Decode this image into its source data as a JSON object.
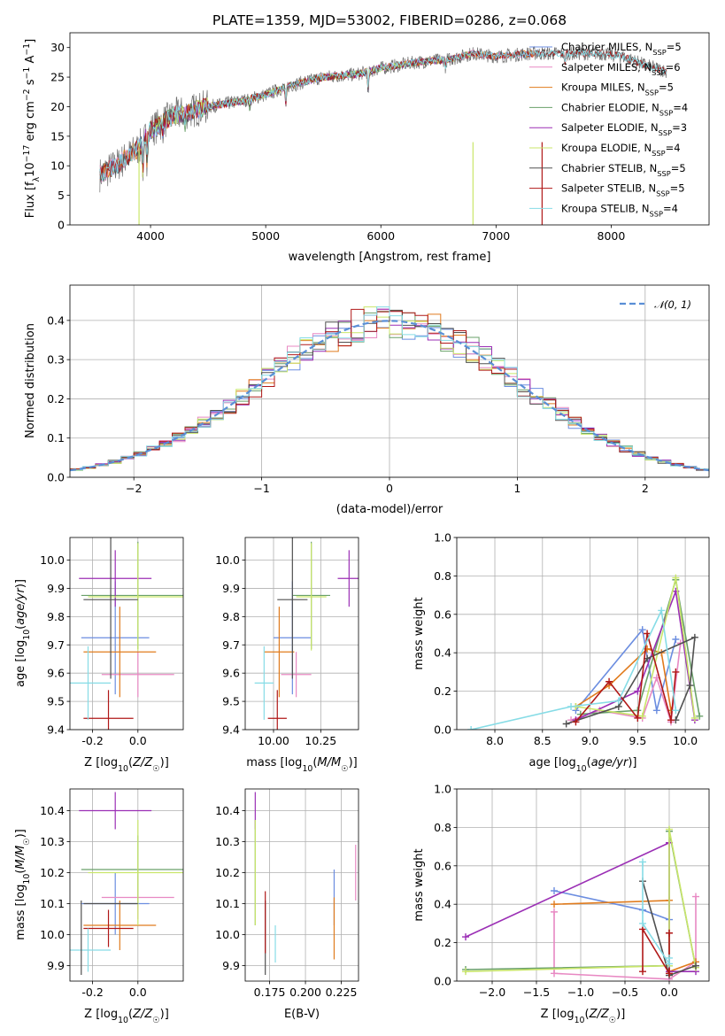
{
  "figure_title": "PLATE=1359, MJD=53002, FIBERID=0286, z=0.068",
  "colors": {
    "chabrier_miles": "#6b8de0",
    "salpeter_miles": "#e889c3",
    "kroupa_miles": "#e07b1d",
    "chabrier_elodie": "#6aa06a",
    "salpeter_elodie": "#9b2fb5",
    "kroupa_elodie": "#c9e66a",
    "chabrier_stelib": "#505050",
    "salpeter_stelib": "#b01818",
    "kroupa_stelib": "#86dce6",
    "spectrum_data": "#707070",
    "gaussian": "#5a8fd6"
  },
  "chart_data": [
    {
      "id": "spectrum",
      "type": "line",
      "xlabel": "wavelength [Angstrom, rest frame]",
      "ylabel": "Flux [f_λ 10^-17 erg cm^-2 s^-1 A^-1]",
      "xlim": [
        3300,
        8850
      ],
      "ylim": [
        0,
        32.5
      ],
      "xticks": [
        4000,
        5000,
        6000,
        7000,
        8000
      ],
      "yticks": [
        0,
        5,
        10,
        15,
        20,
        25,
        30
      ],
      "grid": false,
      "legend_position": "right",
      "legend": [
        {
          "name": "Chabrier MILES",
          "nssp": "5",
          "color_key": "chabrier_miles"
        },
        {
          "name": "Salpeter MILES",
          "nssp": "6",
          "color_key": "salpeter_miles"
        },
        {
          "name": "Kroupa MILES",
          "nssp": "5",
          "color_key": "kroupa_miles"
        },
        {
          "name": "Chabrier ELODIE",
          "nssp": "4",
          "color_key": "chabrier_elodie"
        },
        {
          "name": "Salpeter ELODIE",
          "nssp": "3",
          "color_key": "salpeter_elodie"
        },
        {
          "name": "Kroupa ELODIE",
          "nssp": "4",
          "color_key": "kroupa_elodie"
        },
        {
          "name": "Chabrier STELIB",
          "nssp": "5",
          "color_key": "chabrier_stelib"
        },
        {
          "name": "Salpeter STELIB",
          "nssp": "5",
          "color_key": "salpeter_stelib"
        },
        {
          "name": "Kroupa STELIB",
          "nssp": "4",
          "color_key": "kroupa_stelib"
        }
      ],
      "data_range": [
        3560,
        8480
      ],
      "continuum": [
        [
          3560,
          8.5
        ],
        [
          3700,
          10
        ],
        [
          3900,
          13
        ],
        [
          4000,
          16
        ],
        [
          4200,
          18.5
        ],
        [
          4500,
          20
        ],
        [
          4800,
          21
        ],
        [
          5000,
          22
        ],
        [
          5200,
          23.5
        ],
        [
          5500,
          25
        ],
        [
          5800,
          25.5
        ],
        [
          6000,
          26.5
        ],
        [
          6300,
          27.5
        ],
        [
          6600,
          28
        ],
        [
          6800,
          29
        ],
        [
          7000,
          28.5
        ],
        [
          7300,
          29
        ],
        [
          7600,
          29
        ],
        [
          7900,
          29
        ],
        [
          8100,
          28.5
        ],
        [
          8300,
          27
        ],
        [
          8480,
          26
        ]
      ],
      "model_ranges": {
        "MILES": [
          3560,
          7400
        ],
        "ELODIE": [
          3900,
          6800
        ],
        "STELIB": [
          3560,
          8480
        ]
      }
    },
    {
      "id": "residual-histogram",
      "type": "line",
      "xlabel": "(data-model)/error",
      "ylabel": "Normed distribution",
      "xlim": [
        -2.5,
        2.5
      ],
      "ylim": [
        0,
        0.49
      ],
      "xticks": [
        -2,
        -1,
        0,
        1,
        2
      ],
      "yticks": [
        0,
        0.1,
        0.2,
        0.3,
        0.4
      ],
      "grid": true,
      "legend_position": "top-right",
      "series": [
        {
          "name": "N(0,1)",
          "label": "𝒩(0, 1)",
          "style": "dashed",
          "color_key": "gaussian",
          "mu": 0,
          "sigma": 1
        }
      ],
      "histogram": {
        "bins": 50,
        "xmin": -2.5,
        "xmax": 2.5,
        "models": 9
      }
    },
    {
      "id": "age-vs-Z",
      "type": "scatter",
      "xlabel": "Z [log10(Z/Z☉)]",
      "ylabel": "age [log10(age/yr)]",
      "xlim": [
        -0.3,
        0.2
      ],
      "ylim": [
        9.4,
        10.08
      ],
      "xticks": [
        -0.2,
        0.0
      ],
      "yticks": [
        9.4,
        9.5,
        9.6,
        9.7,
        9.8,
        9.9,
        10.0
      ],
      "grid": true,
      "points": [
        {
          "c": "chabrier_miles",
          "x": -0.1,
          "xerr": 0.15,
          "y": 9.725,
          "yerr": 0.2
        },
        {
          "c": "salpeter_miles",
          "x": 0.0,
          "xerr": 0.16,
          "y": 9.595,
          "yerr": 0.08
        },
        {
          "c": "kroupa_miles",
          "x": -0.08,
          "xerr": 0.16,
          "y": 9.675,
          "yerr": 0.16
        },
        {
          "c": "chabrier_elodie",
          "x": 0.0,
          "xerr": 0.25,
          "y": 9.875,
          "yerr": 0.19
        },
        {
          "c": "salpeter_elodie",
          "x": -0.1,
          "xerr": 0.16,
          "y": 9.935,
          "yerr": 0.1
        },
        {
          "c": "kroupa_elodie",
          "x": 0.0,
          "xerr": 0.22,
          "y": 9.87,
          "yerr": 0.19
        },
        {
          "c": "chabrier_stelib",
          "x": -0.12,
          "xerr": 0.12,
          "y": 9.86,
          "yerr": 0.28
        },
        {
          "c": "salpeter_stelib",
          "x": -0.13,
          "xerr": 0.11,
          "y": 9.44,
          "yerr": 0.1
        },
        {
          "c": "kroupa_stelib",
          "x": -0.22,
          "xerr": 0.1,
          "y": 9.565,
          "yerr": 0.13
        }
      ]
    },
    {
      "id": "age-vs-mass",
      "type": "scatter",
      "xlabel": "mass [log10(M/M☉)]",
      "ylabel": "",
      "xlim": [
        9.85,
        10.45
      ],
      "ylim": [
        9.4,
        10.08
      ],
      "xticks": [
        10.0,
        10.25
      ],
      "yticks": [
        9.4,
        9.5,
        9.6,
        9.7,
        9.8,
        9.9,
        10.0
      ],
      "grid": true,
      "points": [
        {
          "c": "chabrier_miles",
          "x": 10.1,
          "xerr": 0.1,
          "y": 9.725,
          "yerr": 0.2
        },
        {
          "c": "salpeter_miles",
          "x": 10.12,
          "xerr": 0.08,
          "y": 9.595,
          "yerr": 0.08
        },
        {
          "c": "kroupa_miles",
          "x": 10.03,
          "xerr": 0.08,
          "y": 9.675,
          "yerr": 0.16
        },
        {
          "c": "chabrier_elodie",
          "x": 10.2,
          "xerr": 0.1,
          "y": 9.875,
          "yerr": 0.19
        },
        {
          "c": "salpeter_elodie",
          "x": 10.4,
          "xerr": 0.06,
          "y": 9.935,
          "yerr": 0.1
        },
        {
          "c": "kroupa_elodie",
          "x": 10.2,
          "xerr": 0.08,
          "y": 9.87,
          "yerr": 0.19
        },
        {
          "c": "chabrier_stelib",
          "x": 10.1,
          "xerr": 0.08,
          "y": 9.86,
          "yerr": 0.28
        },
        {
          "c": "salpeter_stelib",
          "x": 10.02,
          "xerr": 0.05,
          "y": 9.44,
          "yerr": 0.1
        },
        {
          "c": "kroupa_stelib",
          "x": 9.95,
          "xerr": 0.05,
          "y": 9.565,
          "yerr": 0.13
        }
      ]
    },
    {
      "id": "weight-vs-age",
      "type": "line",
      "xlabel": "age [log10(age/yr)]",
      "ylabel": "mass weight",
      "xlim": [
        7.6,
        10.25
      ],
      "ylim": [
        0,
        1.0
      ],
      "xticks": [
        8.0,
        8.5,
        9.0,
        9.5,
        10.0
      ],
      "yticks": [
        0.0,
        0.2,
        0.4,
        0.6,
        0.8,
        1.0
      ],
      "grid": true,
      "series": [
        {
          "c": "chabrier_miles",
          "points": [
            [
              8.85,
              0.1
            ],
            [
              9.55,
              0.52
            ],
            [
              9.7,
              0.1
            ],
            [
              9.9,
              0.47
            ]
          ]
        },
        {
          "c": "salpeter_miles",
          "points": [
            [
              8.8,
              0.05
            ],
            [
              9.1,
              0.1
            ],
            [
              9.55,
              0.06
            ],
            [
              9.7,
              0.27
            ],
            [
              9.85,
              0.04
            ],
            [
              9.95,
              0.45
            ]
          ]
        },
        {
          "c": "kroupa_miles",
          "points": [
            [
              8.85,
              0.12
            ],
            [
              9.2,
              0.23
            ],
            [
              9.6,
              0.42
            ],
            [
              9.75,
              0.4
            ],
            [
              9.85,
              0.1
            ]
          ]
        },
        {
          "c": "chabrier_elodie",
          "points": [
            [
              8.9,
              0.08
            ],
            [
              9.5,
              0.1
            ],
            [
              9.9,
              0.78
            ],
            [
              10.15,
              0.07
            ]
          ]
        },
        {
          "c": "salpeter_elodie",
          "points": [
            [
              8.85,
              0.05
            ],
            [
              9.5,
              0.2
            ],
            [
              9.9,
              0.72
            ],
            [
              10.1,
              0.05
            ]
          ]
        },
        {
          "c": "kroupa_elodie",
          "points": [
            [
              8.85,
              0.12
            ],
            [
              9.55,
              0.07
            ],
            [
              9.9,
              0.79
            ],
            [
              10.1,
              0.06
            ]
          ]
        },
        {
          "c": "chabrier_stelib",
          "points": [
            [
              8.75,
              0.03
            ],
            [
              9.3,
              0.12
            ],
            [
              9.6,
              0.37
            ],
            [
              10.1,
              0.48
            ],
            [
              10.05,
              0.23
            ],
            [
              9.9,
              0.05
            ]
          ]
        },
        {
          "c": "salpeter_stelib",
          "points": [
            [
              8.85,
              0.04
            ],
            [
              9.2,
              0.25
            ],
            [
              9.5,
              0.06
            ],
            [
              9.6,
              0.5
            ],
            [
              9.85,
              0.05
            ],
            [
              9.9,
              0.3
            ]
          ]
        },
        {
          "c": "kroupa_stelib",
          "points": [
            [
              7.75,
              0.0
            ],
            [
              8.8,
              0.12
            ],
            [
              9.3,
              0.15
            ],
            [
              9.75,
              0.62
            ],
            [
              9.9,
              0.1
            ]
          ]
        }
      ]
    },
    {
      "id": "mass-vs-Z",
      "type": "scatter",
      "xlabel": "Z [log10(Z/Z☉)]",
      "ylabel": "mass [log10(M/M☉)]",
      "xlim": [
        -0.3,
        0.2
      ],
      "ylim": [
        9.85,
        10.47
      ],
      "xticks": [
        -0.2,
        0.0
      ],
      "yticks": [
        9.9,
        10.0,
        10.1,
        10.2,
        10.3,
        10.4
      ],
      "grid": true,
      "points": [
        {
          "c": "chabrier_miles",
          "x": -0.1,
          "xerr": 0.15,
          "y": 10.1,
          "yerr": 0.1
        },
        {
          "c": "salpeter_miles",
          "x": 0.0,
          "xerr": 0.16,
          "y": 10.12,
          "yerr": 0.07
        },
        {
          "c": "kroupa_miles",
          "x": -0.08,
          "xerr": 0.16,
          "y": 10.03,
          "yerr": 0.08
        },
        {
          "c": "chabrier_elodie",
          "x": 0.0,
          "xerr": 0.25,
          "y": 10.21,
          "yerr": 0.11
        },
        {
          "c": "salpeter_elodie",
          "x": -0.1,
          "xerr": 0.16,
          "y": 10.4,
          "yerr": 0.06
        },
        {
          "c": "kroupa_elodie",
          "x": 0.0,
          "xerr": 0.22,
          "y": 10.2,
          "yerr": 0.17
        },
        {
          "c": "chabrier_stelib",
          "x": -0.12,
          "xerr": 0.12,
          "y": 10.1,
          "yerr": 0.0
        },
        {
          "c": "salpeter_stelib",
          "x": -0.13,
          "xerr": 0.11,
          "y": 10.02,
          "yerr": 0.06
        },
        {
          "c": "kroupa_stelib",
          "x": -0.22,
          "xerr": 0.1,
          "y": 9.95,
          "yerr": 0.07
        }
      ],
      "extra_vlines": [
        {
          "c": "chabrier_stelib",
          "x": -0.25,
          "y1": 9.87,
          "y2": 10.11
        }
      ]
    },
    {
      "id": "mass-vs-EBV",
      "type": "scatter",
      "xlabel": "E(B-V)",
      "ylabel": "",
      "xlim": [
        0.158,
        0.237
      ],
      "ylim": [
        9.85,
        10.47
      ],
      "xticks": [
        0.175,
        0.2,
        0.225
      ],
      "yticks": [
        9.9,
        10.0,
        10.1,
        10.2,
        10.3,
        10.4
      ],
      "grid": true,
      "points": [
        {
          "c": "chabrier_miles",
          "x": 0.22,
          "y": 10.12,
          "yerr": 0.09
        },
        {
          "c": "salpeter_miles",
          "x": 0.235,
          "y": 10.2,
          "yerr": 0.09
        },
        {
          "c": "kroupa_miles",
          "x": 0.22,
          "y": 10.02,
          "yerr": 0.1
        },
        {
          "c": "chabrier_elodie",
          "x": 0.165,
          "y": 10.2,
          "yerr": 0.17
        },
        {
          "c": "salpeter_elodie",
          "x": 0.165,
          "y": 10.4,
          "yerr": 0.06
        },
        {
          "c": "kroupa_elodie",
          "x": 0.165,
          "y": 10.2,
          "yerr": 0.17
        },
        {
          "c": "chabrier_stelib",
          "x": 0.172,
          "y": 9.99,
          "yerr": 0.12
        },
        {
          "c": "salpeter_stelib",
          "x": 0.172,
          "y": 10.04,
          "yerr": 0.1
        },
        {
          "c": "kroupa_stelib",
          "x": 0.179,
          "y": 9.97,
          "yerr": 0.06
        }
      ]
    },
    {
      "id": "weight-vs-Z",
      "type": "line",
      "xlabel": "Z [log10(Z/Z☉)]",
      "ylabel": "mass weight",
      "xlim": [
        -2.4,
        0.45
      ],
      "ylim": [
        0,
        1.0
      ],
      "xticks": [
        -2.0,
        -1.5,
        -1.0,
        -0.5,
        0.0
      ],
      "yticks": [
        0.0,
        0.2,
        0.4,
        0.6,
        0.8,
        1.0
      ],
      "grid": true,
      "series": [
        {
          "c": "chabrier_miles",
          "points": [
            [
              -1.3,
              0.47
            ],
            [
              -0.3,
              0.37
            ],
            [
              0.0,
              0.32
            ]
          ]
        },
        {
          "c": "salpeter_miles",
          "points": [
            [
              -1.3,
              0.36
            ],
            [
              -1.3,
              0.04
            ],
            [
              0.0,
              0.01
            ],
            [
              0.3,
              0.1
            ],
            [
              0.3,
              0.44
            ]
          ]
        },
        {
          "c": "kroupa_miles",
          "points": [
            [
              -1.3,
              0.4
            ],
            [
              0.0,
              0.42
            ],
            [
              0.0,
              0.05
            ],
            [
              0.3,
              0.1
            ]
          ]
        },
        {
          "c": "chabrier_elodie",
          "points": [
            [
              -2.3,
              0.06
            ],
            [
              0.0,
              0.08
            ],
            [
              0.0,
              0.78
            ],
            [
              0.3,
              0.07
            ]
          ]
        },
        {
          "c": "salpeter_elodie",
          "points": [
            [
              -2.3,
              0.23
            ],
            [
              0.0,
              0.72
            ],
            [
              0.0,
              0.05
            ],
            [
              0.3,
              0.05
            ]
          ]
        },
        {
          "c": "kroupa_elodie",
          "points": [
            [
              -2.3,
              0.05
            ],
            [
              0.0,
              0.08
            ],
            [
              0.0,
              0.79
            ],
            [
              0.3,
              0.07
            ]
          ]
        },
        {
          "c": "chabrier_stelib",
          "points": [
            [
              -0.3,
              0.52
            ],
            [
              0.0,
              0.03
            ],
            [
              0.3,
              0.08
            ]
          ]
        },
        {
          "c": "salpeter_stelib",
          "points": [
            [
              -0.3,
              0.05
            ],
            [
              -0.3,
              0.27
            ],
            [
              0.0,
              0.04
            ],
            [
              0.0,
              0.25
            ]
          ]
        },
        {
          "c": "kroupa_stelib",
          "points": [
            [
              -0.3,
              0.62
            ],
            [
              -0.3,
              0.3
            ],
            [
              0.0,
              0.09
            ],
            [
              0.0,
              0.12
            ]
          ]
        }
      ]
    }
  ]
}
